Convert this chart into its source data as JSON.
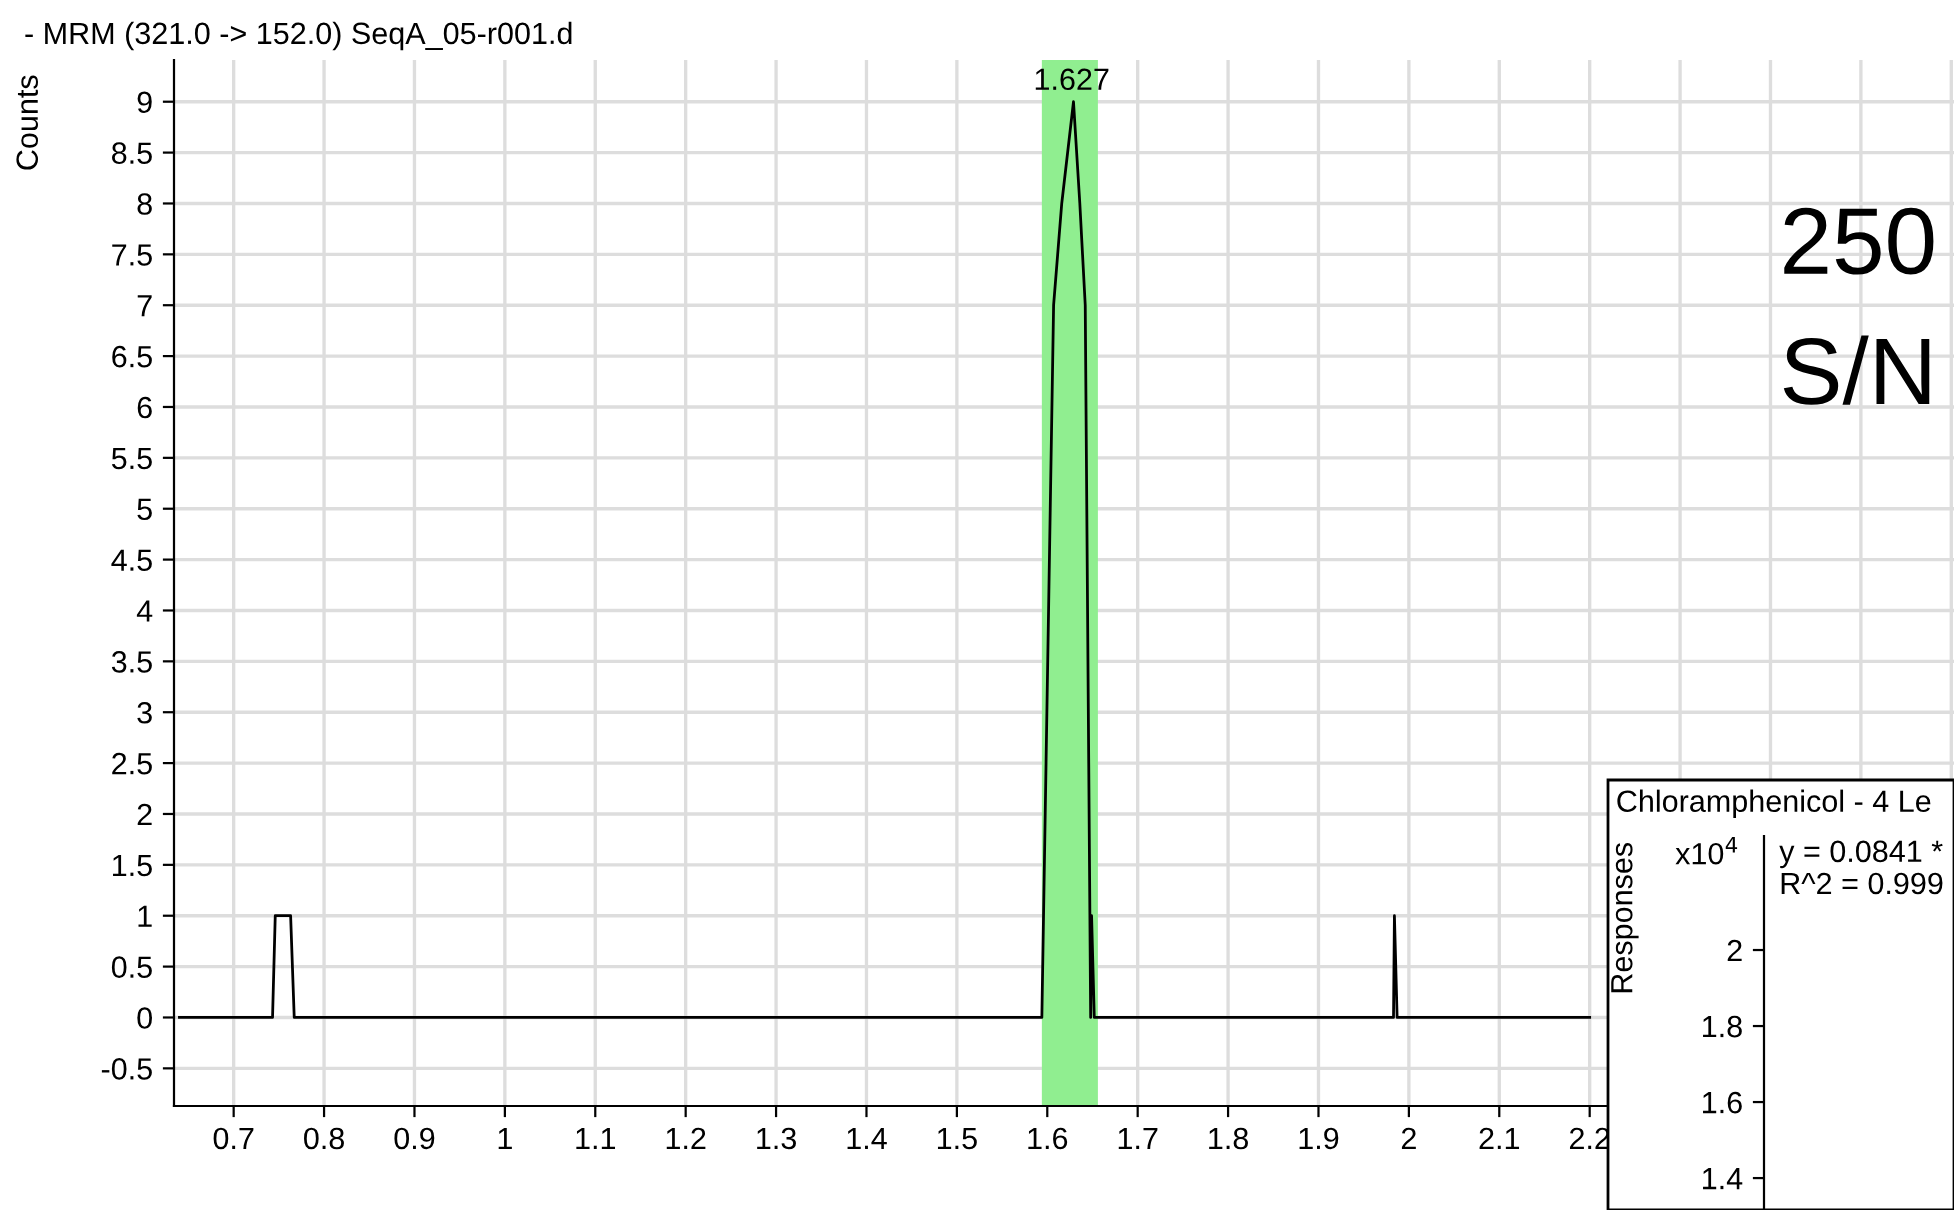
{
  "chart_data": [
    {
      "type": "line",
      "title": "- MRM (321.0 -> 152.0) SeqA_05-r001.d",
      "ylabel": "Counts",
      "series": [
        {
          "color": "#000000",
          "x": [
            0.64,
            0.743,
            0.746,
            0.763,
            0.767,
            1.594,
            1.607,
            1.616,
            1.629,
            1.636,
            1.642,
            1.648,
            1.649,
            1.652,
            1.983,
            1.984,
            1.987,
            2.2
          ],
          "values": [
            0,
            0,
            1,
            1,
            0,
            0,
            7,
            8,
            9,
            8,
            7,
            0,
            1,
            0,
            0,
            1,
            0,
            0
          ]
        }
      ],
      "xlim": [
        0.634,
        2.603
      ],
      "ylim": [
        -0.87,
        9.41
      ],
      "xticks": [
        0.7,
        0.8,
        0.9,
        1,
        1.1,
        1.2,
        1.3,
        1.4,
        1.5,
        1.6,
        1.7,
        1.8,
        1.9,
        2,
        2.1,
        2.2,
        {
          "value": 2.3,
          "label": null
        },
        {
          "value": 2.4,
          "label": null
        },
        {
          "value": 2.5,
          "label": null
        },
        {
          "value": 2.6,
          "label": null
        }
      ],
      "yticks": [
        -0.5,
        0,
        0.5,
        1,
        1.5,
        2,
        2.5,
        3,
        3.5,
        4,
        4.5,
        5,
        5.5,
        6,
        6.5,
        7,
        7.5,
        8,
        8.5,
        9
      ],
      "bands": [
        {
          "axis": "x",
          "from": 1.594,
          "to": 1.656,
          "color": "#90ee90"
        }
      ],
      "annotations": [
        {
          "text": "1.627",
          "x": 1.627,
          "y": 9
        },
        "250",
        "S/N"
      ],
      "grid": true,
      "legend": false,
      "line_style": "solid",
      "marker": "none"
    },
    {
      "type": "line",
      "categories": [
        null,
        null
      ],
      "title": "Chloramphenicol - 4 Le",
      "ylabel": "Responses",
      "ylim": [
        1.316,
        2.3
      ],
      "yticks": [
        1.4,
        1.6,
        1.8,
        2
      ],
      "annotations": [
        "x10$^{4}$",
        "y = 0.0841 *",
        "R^2 = 0.999"
      ]
    }
  ]
}
